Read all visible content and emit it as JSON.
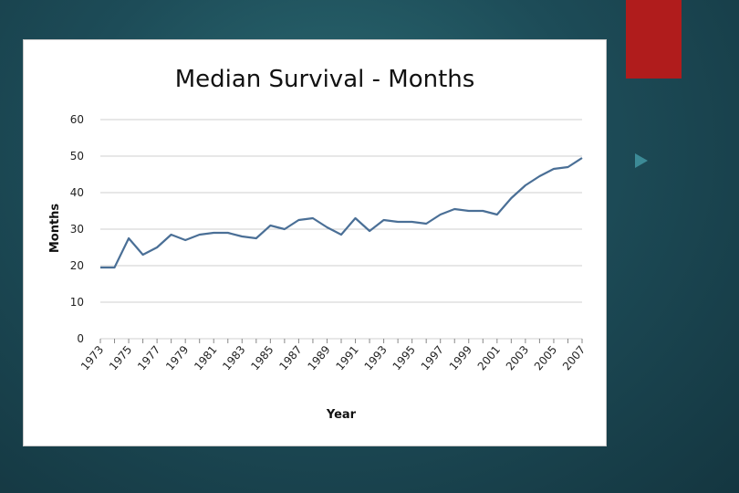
{
  "slide": {
    "accent_color": "#b01c1c",
    "arrow_icon": "triangle-right-icon"
  },
  "chart_data": {
    "type": "line",
    "title": "Median Survival - Months",
    "xlabel": "Year",
    "ylabel": "Months",
    "ylim": [
      0,
      60
    ],
    "yticks": [
      0,
      10,
      20,
      30,
      40,
      50,
      60
    ],
    "x_tick_labels": [
      "1973",
      "1975",
      "1977",
      "1979",
      "1981",
      "1983",
      "1985",
      "1987",
      "1989",
      "1991",
      "1993",
      "1995",
      "1997",
      "1999",
      "2001",
      "2003",
      "2005",
      "2007"
    ],
    "grid": true,
    "line_color": "#4a6f96",
    "series": [
      {
        "x": [
          1973,
          1974,
          1975,
          1976,
          1977,
          1978,
          1979,
          1980,
          1981,
          1982,
          1983,
          1984,
          1985,
          1986,
          1987,
          1988,
          1989,
          1990,
          1991,
          1992,
          1993,
          1994,
          1995,
          1996,
          1997,
          1998,
          1999,
          2000,
          2001,
          2002,
          2003,
          2004,
          2005,
          2006,
          2007
        ],
        "values": [
          19.5,
          19.5,
          27.5,
          23,
          25,
          28.5,
          27,
          28.5,
          29,
          29,
          28,
          27.5,
          31,
          30,
          32.5,
          33,
          30.5,
          28.5,
          33,
          29.5,
          32.5,
          32,
          32,
          31.5,
          34,
          35.5,
          35,
          35,
          34,
          38.5,
          42,
          44.5,
          46.5,
          47,
          49.5
        ]
      }
    ]
  }
}
